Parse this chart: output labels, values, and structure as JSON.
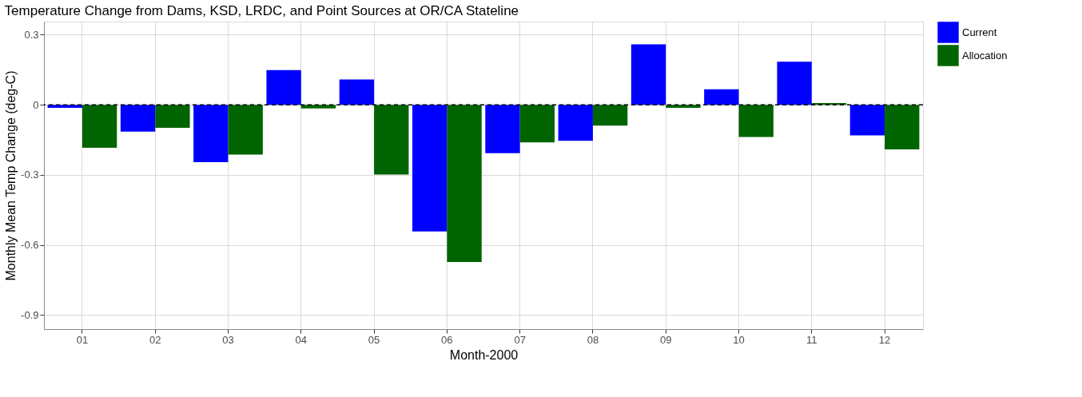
{
  "chart_data": {
    "type": "bar",
    "title": "Temperature Change from Dams, KSD, LRDC, and Point Sources at OR/CA Stateline",
    "xlabel": "Month-2000",
    "ylabel": "Monthly Mean Temp Change (deg-C)",
    "categories": [
      "01",
      "02",
      "03",
      "04",
      "05",
      "06",
      "07",
      "08",
      "09",
      "10",
      "11",
      "12"
    ],
    "series": [
      {
        "name": "Current",
        "color": "#0000ff",
        "values": [
          -0.013,
          -0.115,
          -0.246,
          0.148,
          0.108,
          -0.542,
          -0.207,
          -0.154,
          0.259,
          0.066,
          0.184,
          -0.131
        ]
      },
      {
        "name": "Allocation",
        "color": "#006400",
        "values": [
          -0.184,
          -0.099,
          -0.213,
          -0.016,
          -0.299,
          -0.673,
          -0.161,
          -0.089,
          -0.013,
          -0.138,
          0.007,
          -0.191
        ]
      }
    ],
    "ylim": [
      -0.96,
      0.356
    ],
    "yticks": [
      {
        "value": 0.3,
        "label": "0.3"
      },
      {
        "value": 0,
        "label": "0"
      },
      {
        "value": -0.3,
        "label": "-0.3"
      },
      {
        "value": -0.6,
        "label": "-0.6"
      },
      {
        "value": -0.9,
        "label": "-0.9"
      }
    ],
    "ref_lines": [
      {
        "axis": "y",
        "value": 0,
        "color": "#000000",
        "line_style": "dashed"
      }
    ],
    "grid": true,
    "legend": "right"
  }
}
